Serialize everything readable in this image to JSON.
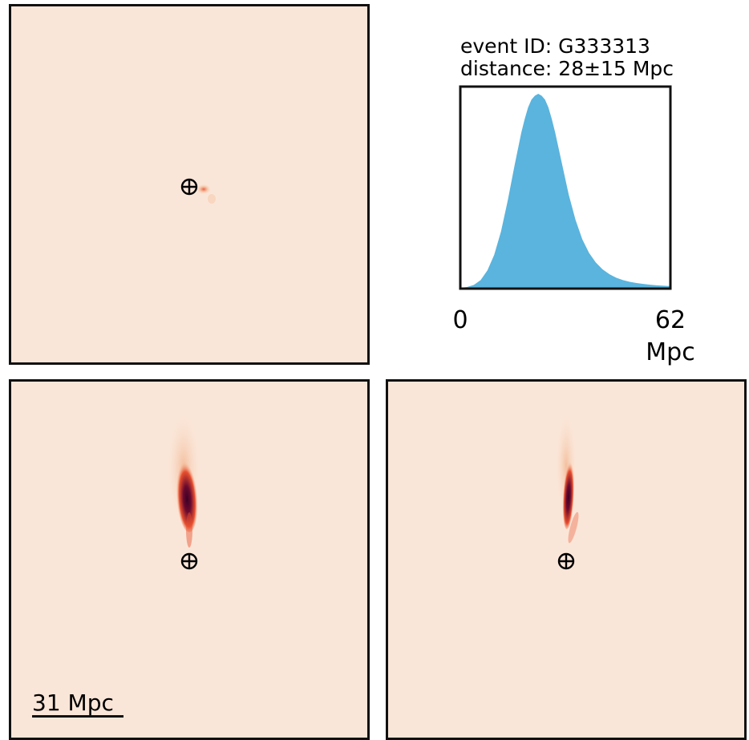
{
  "panels": {
    "colors": {
      "background": "#fae6d8",
      "low": "#f3b893",
      "mid": "#e8502f",
      "high": "#6a0a2e",
      "peak": "#3b0124"
    },
    "scale_bar": {
      "label": "31 Mpc"
    }
  },
  "chart_data": {
    "type": "area",
    "title": "event ID: G333313",
    "subtitle": "distance: 28±15 Mpc",
    "xlabel": "Mpc",
    "ylabel": "",
    "xlim": [
      0,
      62
    ],
    "xticks": [
      "0",
      "62"
    ],
    "fill_color": "#5ab4dd",
    "series": [
      {
        "x": [
          0,
          2,
          4,
          6,
          8,
          10,
          12,
          14,
          16,
          18,
          19,
          20,
          21,
          22,
          23,
          24,
          25,
          26,
          27,
          28,
          29,
          30,
          31,
          32,
          34,
          36,
          38,
          40,
          42,
          44,
          46,
          48,
          50,
          52,
          54,
          56,
          58,
          60,
          62
        ],
        "values": [
          0.0,
          0.004,
          0.015,
          0.04,
          0.09,
          0.17,
          0.29,
          0.45,
          0.63,
          0.8,
          0.87,
          0.93,
          0.97,
          0.99,
          1.0,
          0.99,
          0.97,
          0.93,
          0.87,
          0.8,
          0.72,
          0.64,
          0.56,
          0.48,
          0.35,
          0.25,
          0.18,
          0.13,
          0.095,
          0.07,
          0.052,
          0.04,
          0.031,
          0.025,
          0.02,
          0.016,
          0.013,
          0.011,
          0.009
        ]
      }
    ]
  }
}
